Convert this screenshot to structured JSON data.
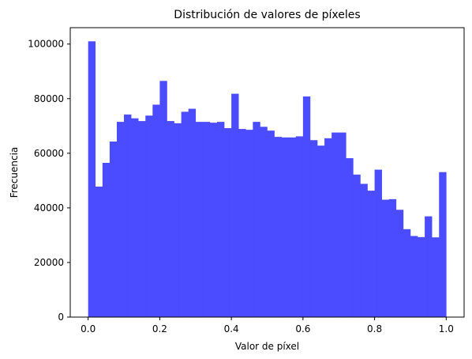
{
  "chart_data": {
    "type": "bar",
    "title": "Distribución de valores de píxeles",
    "xlabel": "Valor de píxel",
    "ylabel": "Frecuencia",
    "bar_color": "#4b4bff",
    "x_range": [
      -0.05,
      1.05
    ],
    "ylim": [
      0,
      106000
    ],
    "x_ticks": [
      0.0,
      0.2,
      0.4,
      0.6,
      0.8,
      1.0
    ],
    "x_tick_labels": [
      "0.0",
      "0.2",
      "0.4",
      "0.6",
      "0.8",
      "1.0"
    ],
    "y_ticks": [
      0,
      20000,
      40000,
      60000,
      80000,
      100000
    ],
    "y_tick_labels": [
      "0",
      "20000",
      "40000",
      "60000",
      "80000",
      "100000"
    ],
    "bin_edges_start": 0.0,
    "bin_edges_end": 1.0,
    "values": [
      101000,
      47800,
      56500,
      64300,
      71500,
      74200,
      72800,
      71800,
      73800,
      77800,
      86500,
      71800,
      71000,
      75200,
      76300,
      71500,
      71500,
      71200,
      71500,
      69200,
      81800,
      68900,
      68600,
      71500,
      69700,
      68300,
      66000,
      65800,
      65800,
      66200,
      80800,
      64800,
      62800,
      65500,
      67600,
      67600,
      58200,
      52200,
      48800,
      46300,
      54000,
      43000,
      43200,
      39300,
      32200,
      29700,
      29300,
      36900,
      29200,
      53100
    ]
  }
}
